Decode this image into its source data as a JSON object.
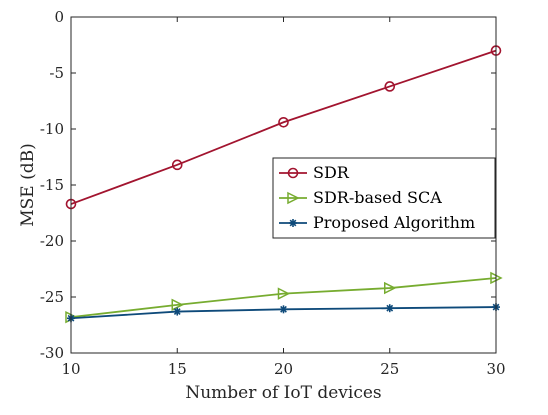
{
  "chart_data": {
    "type": "line",
    "xlabel": "Number of IoT devices",
    "ylabel": "MSE (dB)",
    "x": [
      10,
      15,
      20,
      25,
      30
    ],
    "xlim": [
      10,
      30
    ],
    "ylim": [
      -30,
      0
    ],
    "xticks": [
      10,
      15,
      20,
      25,
      30
    ],
    "yticks": [
      0,
      -5,
      -10,
      -15,
      -20,
      -25,
      -30
    ],
    "grid": false,
    "legend_position": "center-right",
    "series": [
      {
        "name": "SDR",
        "values": [
          -16.7,
          -13.2,
          -9.4,
          -6.2,
          -3.0
        ],
        "color": "#a2142f",
        "marker": "circle"
      },
      {
        "name": "SDR-based SCA",
        "values": [
          -26.8,
          -25.7,
          -24.7,
          -24.2,
          -23.3
        ],
        "color": "#77ac30",
        "marker": "triangle-right"
      },
      {
        "name": "Proposed Algorithm",
        "values": [
          -26.9,
          -26.3,
          -26.1,
          -26.0,
          -25.9
        ],
        "color": "#0e4a7a",
        "marker": "asterisk"
      }
    ]
  }
}
